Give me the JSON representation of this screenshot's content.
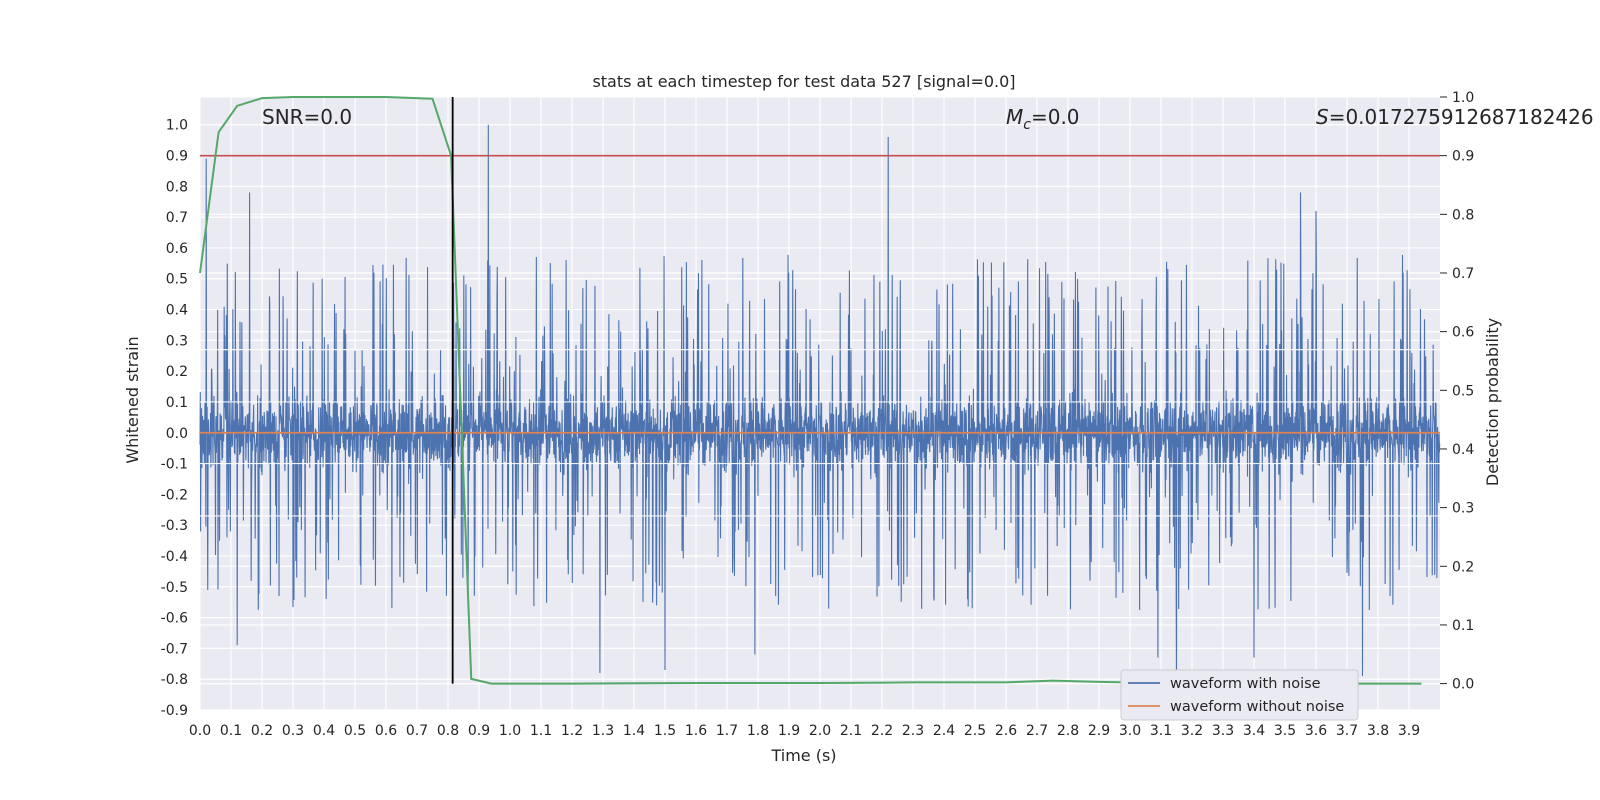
{
  "chart_data": {
    "type": "line",
    "title": "stats at each timestep for test data 527 [signal=0.0]",
    "xlabel": "Time (s)",
    "ylabel": "Whitened strain",
    "ylabel_right": "Detection probability",
    "xlim": [
      0.0,
      4.0
    ],
    "ylim": [
      -0.9,
      1.09
    ],
    "ylim_right": [
      -0.045,
      1.0
    ],
    "x_ticks": [
      "0.0",
      "0.1",
      "0.2",
      "0.3",
      "0.4",
      "0.5",
      "0.6",
      "0.7",
      "0.8",
      "0.9",
      "1.0",
      "1.1",
      "1.2",
      "1.3",
      "1.4",
      "1.5",
      "1.6",
      "1.7",
      "1.8",
      "1.9",
      "2.0",
      "2.1",
      "2.2",
      "2.3",
      "2.4",
      "2.5",
      "2.6",
      "2.7",
      "2.8",
      "2.9",
      "3.0",
      "3.1",
      "3.2",
      "3.3",
      "3.4",
      "3.5",
      "3.6",
      "3.7",
      "3.8",
      "3.9"
    ],
    "y_ticks": [
      "1.0",
      "0.9",
      "0.8",
      "0.7",
      "0.6",
      "0.5",
      "0.4",
      "0.3",
      "0.2",
      "0.1",
      "0.0",
      "-0.1",
      "-0.2",
      "-0.3",
      "-0.4",
      "-0.5",
      "-0.6",
      "-0.7",
      "-0.8",
      "-0.9"
    ],
    "y_ticks_right": [
      "1.0",
      "0.9",
      "0.8",
      "0.7",
      "0.6",
      "0.5",
      "0.4",
      "0.3",
      "0.2",
      "0.1",
      "0.0"
    ],
    "grid": true,
    "legend_position": "lower-right",
    "annotations": {
      "snr": "SNR=0.0",
      "mc_symbol": "M",
      "mc_sub": "c",
      "mc_value": "=0.0",
      "s_symbol": "S",
      "s_value": "=0.017275912687182426"
    },
    "series": [
      {
        "name": "waveform with noise",
        "color": "#4c72b0",
        "description_peaks": [
          [
            0.02,
            0.89
          ],
          [
            0.16,
            0.78
          ],
          [
            0.93,
            1.0
          ],
          [
            2.22,
            0.96
          ],
          [
            3.55,
            0.78
          ],
          [
            3.6,
            0.72
          ],
          [
            0.12,
            -0.69
          ],
          [
            1.29,
            -0.78
          ],
          [
            1.5,
            -0.77
          ],
          [
            1.79,
            -0.72
          ],
          [
            3.09,
            -0.73
          ],
          [
            3.4,
            -0.73
          ],
          [
            3.75,
            -0.79
          ],
          [
            3.15,
            -0.85
          ]
        ],
        "envelope_typical": 0.4,
        "core_amplitude": 0.09
      },
      {
        "name": "waveform without noise",
        "color": "#dd8452",
        "y": 0.0
      },
      {
        "name": "Detection probability",
        "axis": "right",
        "color": "#55a868",
        "x": [
          0.0,
          0.06,
          0.12,
          0.2,
          0.3,
          0.45,
          0.6,
          0.75,
          0.81,
          0.875,
          0.94,
          1.2,
          1.6,
          2.0,
          2.3,
          2.6,
          2.75,
          2.9,
          3.1,
          3.3,
          3.5,
          3.7,
          3.94
        ],
        "y": [
          0.7,
          0.94,
          0.985,
          0.998,
          1.0,
          1.0,
          1.0,
          0.997,
          0.9,
          0.008,
          0.0,
          0.0,
          0.001,
          0.001,
          0.002,
          0.002,
          0.005,
          0.003,
          0.001,
          0.001,
          0.0,
          0.0,
          0.0
        ]
      }
    ],
    "threshold": {
      "axis": "right",
      "value": 0.9,
      "color": "#c44e52"
    },
    "vline": {
      "x": 0.815,
      "color": "#000000"
    }
  }
}
